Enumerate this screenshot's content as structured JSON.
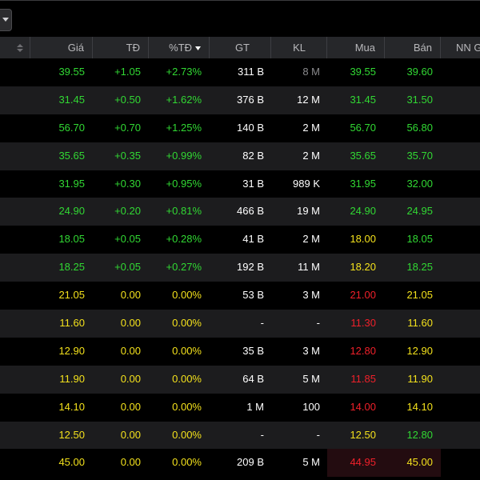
{
  "colors": {
    "up": "#31d833",
    "ref": "#f3e11c",
    "down": "#f0202a",
    "neutral": "#ffffff",
    "muted": "#8a8a8d"
  },
  "toolbar": {
    "dropdown_icon": "chevron-down-icon"
  },
  "table": {
    "columns": [
      "Giá",
      "TĐ",
      "%TĐ",
      "GT",
      "KL",
      "Mua",
      "Bán",
      "NN G"
    ],
    "sorted_column": "%TĐ",
    "sort_direction": "descending",
    "rows": [
      {
        "price": "39.55",
        "change": "+1.05",
        "pct": "+2.73%",
        "gt": "311 B",
        "kl": "8 M",
        "buy": "39.55",
        "sell": "39.60",
        "c": {
          "price": "green",
          "change": "green",
          "pct": "green",
          "kl": "gray",
          "buy": "green",
          "sell": "green"
        }
      },
      {
        "price": "31.45",
        "change": "+0.50",
        "pct": "+1.62%",
        "gt": "376 B",
        "kl": "12 M",
        "buy": "31.45",
        "sell": "31.50",
        "c": {
          "price": "green",
          "change": "green",
          "pct": "green",
          "kl": "white",
          "buy": "green",
          "sell": "green"
        }
      },
      {
        "price": "56.70",
        "change": "+0.70",
        "pct": "+1.25%",
        "gt": "140 B",
        "kl": "2 M",
        "buy": "56.70",
        "sell": "56.80",
        "c": {
          "price": "green",
          "change": "green",
          "pct": "green",
          "kl": "white",
          "buy": "green",
          "sell": "green"
        }
      },
      {
        "price": "35.65",
        "change": "+0.35",
        "pct": "+0.99%",
        "gt": "82 B",
        "kl": "2 M",
        "buy": "35.65",
        "sell": "35.70",
        "c": {
          "price": "green",
          "change": "green",
          "pct": "green",
          "kl": "white",
          "buy": "green",
          "sell": "green"
        }
      },
      {
        "price": "31.95",
        "change": "+0.30",
        "pct": "+0.95%",
        "gt": "31 B",
        "kl": "989 K",
        "buy": "31.95",
        "sell": "32.00",
        "c": {
          "price": "green",
          "change": "green",
          "pct": "green",
          "kl": "white",
          "buy": "green",
          "sell": "green"
        }
      },
      {
        "price": "24.90",
        "change": "+0.20",
        "pct": "+0.81%",
        "gt": "466 B",
        "kl": "19 M",
        "buy": "24.90",
        "sell": "24.95",
        "c": {
          "price": "green",
          "change": "green",
          "pct": "green",
          "kl": "white",
          "buy": "green",
          "sell": "green"
        }
      },
      {
        "price": "18.05",
        "change": "+0.05",
        "pct": "+0.28%",
        "gt": "41 B",
        "kl": "2 M",
        "buy": "18.00",
        "sell": "18.05",
        "c": {
          "price": "green",
          "change": "green",
          "pct": "green",
          "kl": "white",
          "buy": "yellow",
          "sell": "green"
        }
      },
      {
        "price": "18.25",
        "change": "+0.05",
        "pct": "+0.27%",
        "gt": "192 B",
        "kl": "11 M",
        "buy": "18.20",
        "sell": "18.25",
        "c": {
          "price": "green",
          "change": "green",
          "pct": "green",
          "kl": "white",
          "buy": "yellow",
          "sell": "green"
        }
      },
      {
        "price": "21.05",
        "change": "0.00",
        "pct": "0.00%",
        "gt": "53 B",
        "kl": "3 M",
        "buy": "21.00",
        "sell": "21.05",
        "c": {
          "price": "yellow",
          "change": "yellow",
          "pct": "yellow",
          "kl": "white",
          "buy": "red",
          "sell": "yellow"
        }
      },
      {
        "price": "11.60",
        "change": "0.00",
        "pct": "0.00%",
        "gt": "-",
        "kl": "-",
        "buy": "11.30",
        "sell": "11.60",
        "c": {
          "price": "yellow",
          "change": "yellow",
          "pct": "yellow",
          "kl": "white",
          "buy": "red",
          "sell": "yellow"
        }
      },
      {
        "price": "12.90",
        "change": "0.00",
        "pct": "0.00%",
        "gt": "35 B",
        "kl": "3 M",
        "buy": "12.80",
        "sell": "12.90",
        "c": {
          "price": "yellow",
          "change": "yellow",
          "pct": "yellow",
          "kl": "white",
          "buy": "red",
          "sell": "yellow"
        }
      },
      {
        "price": "11.90",
        "change": "0.00",
        "pct": "0.00%",
        "gt": "64 B",
        "kl": "5 M",
        "buy": "11.85",
        "sell": "11.90",
        "c": {
          "price": "yellow",
          "change": "yellow",
          "pct": "yellow",
          "kl": "white",
          "buy": "red",
          "sell": "yellow"
        }
      },
      {
        "price": "14.10",
        "change": "0.00",
        "pct": "0.00%",
        "gt": "1 M",
        "kl": "100",
        "buy": "14.00",
        "sell": "14.10",
        "c": {
          "price": "yellow",
          "change": "yellow",
          "pct": "yellow",
          "kl": "white",
          "buy": "red",
          "sell": "yellow"
        }
      },
      {
        "price": "12.50",
        "change": "0.00",
        "pct": "0.00%",
        "gt": "-",
        "kl": "-",
        "buy": "12.50",
        "sell": "12.80",
        "c": {
          "price": "yellow",
          "change": "yellow",
          "pct": "yellow",
          "kl": "white",
          "buy": "yellow",
          "sell": "green"
        }
      },
      {
        "price": "45.00",
        "change": "0.00",
        "pct": "0.00%",
        "gt": "209 B",
        "kl": "5 M",
        "buy": "44.95",
        "sell": "45.00",
        "c": {
          "price": "yellow",
          "change": "yellow",
          "pct": "yellow",
          "kl": "white",
          "buy": "red",
          "sell": "yellow"
        }
      }
    ]
  }
}
